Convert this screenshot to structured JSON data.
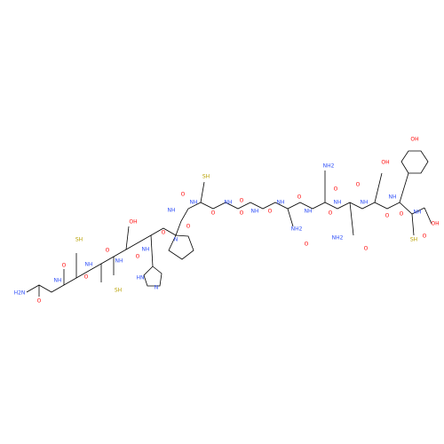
{
  "atom_labels": [
    "H2N",
    "O",
    "NH",
    "O",
    "SH",
    "NH",
    "O",
    "O",
    "NH",
    "SH",
    "OH",
    "O",
    "NH",
    "HN",
    "N",
    "O",
    "N",
    "O",
    "NH",
    "O",
    "SH",
    "NH",
    "O",
    "O",
    "NH",
    "O",
    "NH",
    "O",
    "NH",
    "O",
    "NH2",
    "NH2",
    "O",
    "NH",
    "O",
    "NH",
    "O",
    "NH2",
    "O",
    "OH",
    "O",
    "NH",
    "O",
    "NH",
    "OH",
    "O",
    "NH",
    "OH",
    "O",
    "SH"
  ]
}
